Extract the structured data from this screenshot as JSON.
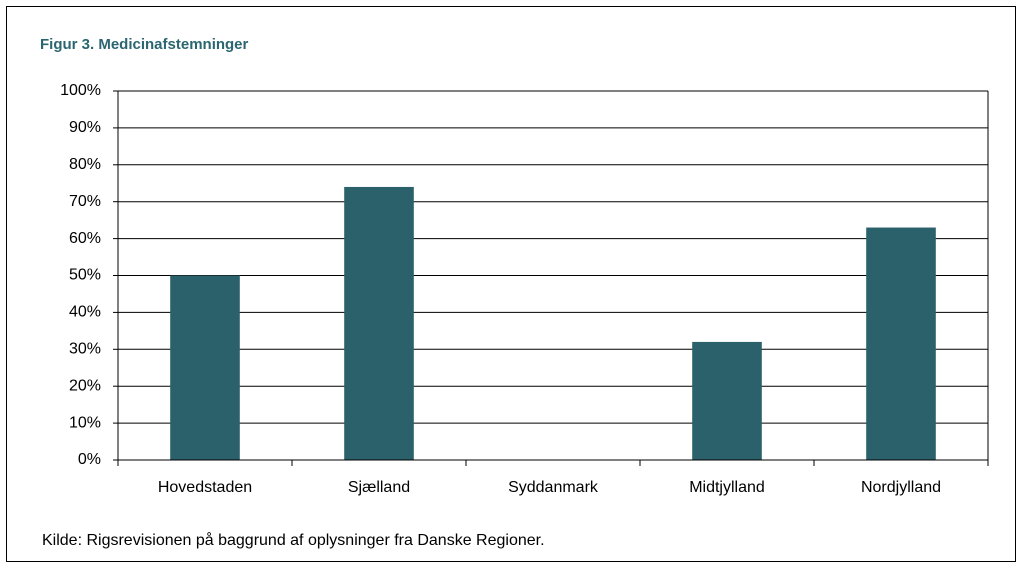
{
  "chart_data": {
    "type": "bar",
    "title": "Figur 3. Medicinafstemninger",
    "categories": [
      "Hovedstaden",
      "Sjælland",
      "Syddanmark",
      "Midtjylland",
      "Nordjylland"
    ],
    "values": [
      50,
      74,
      null,
      32,
      63
    ],
    "color": "#2b616b",
    "ylim": [
      0,
      100
    ],
    "yticks": [
      {
        "value": 0,
        "label": "0%"
      },
      {
        "value": 10,
        "label": "10%"
      },
      {
        "value": 20,
        "label": "20%"
      },
      {
        "value": 30,
        "label": "30%"
      },
      {
        "value": 40,
        "label": "40%"
      },
      {
        "value": 50,
        "label": "50%"
      },
      {
        "value": 60,
        "label": "60%"
      },
      {
        "value": 70,
        "label": "70%"
      },
      {
        "value": 80,
        "label": "80%"
      },
      {
        "value": 90,
        "label": "90%"
      },
      {
        "value": 100,
        "label": "100%"
      }
    ],
    "grid": true,
    "source": "Kilde:  Rigsrevisionen på baggrund af oplysninger fra Danske Regioner."
  }
}
